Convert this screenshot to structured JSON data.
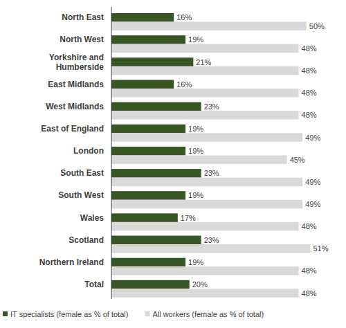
{
  "chart_data": {
    "type": "bar",
    "orientation": "horizontal",
    "categories": [
      "North East",
      "North West",
      "Yorkshire and Humberside",
      "East Midlands",
      "West Midlands",
      "East of England",
      "London",
      "South East",
      "South West",
      "Wales",
      "Scotland",
      "Northern Ireland",
      "Total"
    ],
    "series": [
      {
        "name": "IT specialists (female as % of total)",
        "color": "#375623",
        "values": [
          16,
          19,
          21,
          16,
          23,
          19,
          19,
          23,
          19,
          17,
          23,
          19,
          20
        ],
        "value_labels": [
          "16%",
          "19%",
          "21%",
          "16%",
          "23%",
          "19%",
          "19%",
          "23%",
          "19%",
          "17%",
          "23%",
          "19%",
          "20%"
        ]
      },
      {
        "name": "All workers (female as % of total)",
        "color": "#d9d9d9",
        "values": [
          50,
          48,
          48,
          48,
          48,
          49,
          45,
          49,
          49,
          48,
          51,
          48,
          48
        ],
        "value_labels": [
          "50%",
          "48%",
          "48%",
          "48%",
          "48%",
          "49%",
          "45%",
          "49%",
          "49%",
          "48%",
          "51%",
          "48%",
          "48%"
        ]
      }
    ],
    "xlim": [
      0,
      55
    ],
    "tick_labels": false,
    "grid": false,
    "data_labels": true,
    "legend": "bottom"
  }
}
